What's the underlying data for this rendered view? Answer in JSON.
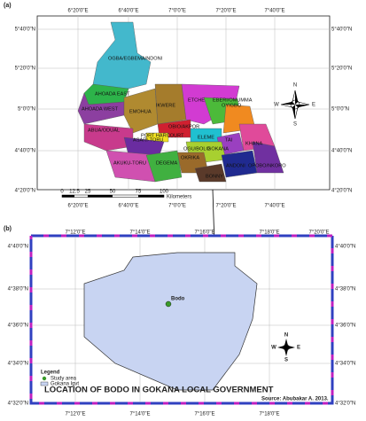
{
  "panel_a": {
    "label": "(a)",
    "lon_labels": [
      "6°20'0\"E",
      "6°40'0\"E",
      "7°0'0\"E",
      "7°20'0\"E",
      "7°40'0\"E"
    ],
    "lat_labels": [
      "5°40'0\"N",
      "5°20'0\"N",
      "5°0'0\"N",
      "4°40'0\"N",
      "4°20'0\"N"
    ],
    "regions": [
      "OGBA/EGBEMA/NDONI",
      "AHOADA EAST",
      "AHOADA WEST",
      "EMOHUA",
      "IKWERE",
      "ETCHE",
      "EBERI/OMUMMA",
      "ABUA/ODUAL",
      "OBIO/AKPOR",
      "PORT HARCOURT",
      "ASARI-TORU",
      "ELEME",
      "OYIGBO",
      "TAI",
      "KHANA",
      "OGU/BOLO",
      "GOKANA",
      "OKRIKA",
      "AKUKU-TORU",
      "DEGEMA",
      "BONNY",
      "ANDONI",
      "OPOBO/NKORO"
    ],
    "scale": [
      "0",
      "12.5",
      "25",
      "50",
      "75",
      "100"
    ],
    "scale_unit": "Kilometers",
    "compass": [
      "N",
      "S",
      "E",
      "W"
    ]
  },
  "panel_b": {
    "label": "(b)",
    "lon_labels": [
      "7°12'0\"E",
      "7°14'0\"E",
      "7°16'0\"E",
      "7°18'0\"E",
      "7°20'0\"E"
    ],
    "lat_labels": [
      "4°40'0\"N",
      "4°38'0\"N",
      "4°36'0\"N",
      "4°34'0\"N",
      "4°32'0\"N"
    ],
    "place": "Bodo",
    "legend": {
      "title": "Legend",
      "items": [
        "Study area",
        "Gokana lgvt"
      ]
    },
    "compass": [
      "N",
      "S",
      "E",
      "W"
    ],
    "title": "LOCATION OF BODO IN GOKANA LOCAL GOVERNMENT",
    "source": "Source: Abubakar A. 2013."
  }
}
